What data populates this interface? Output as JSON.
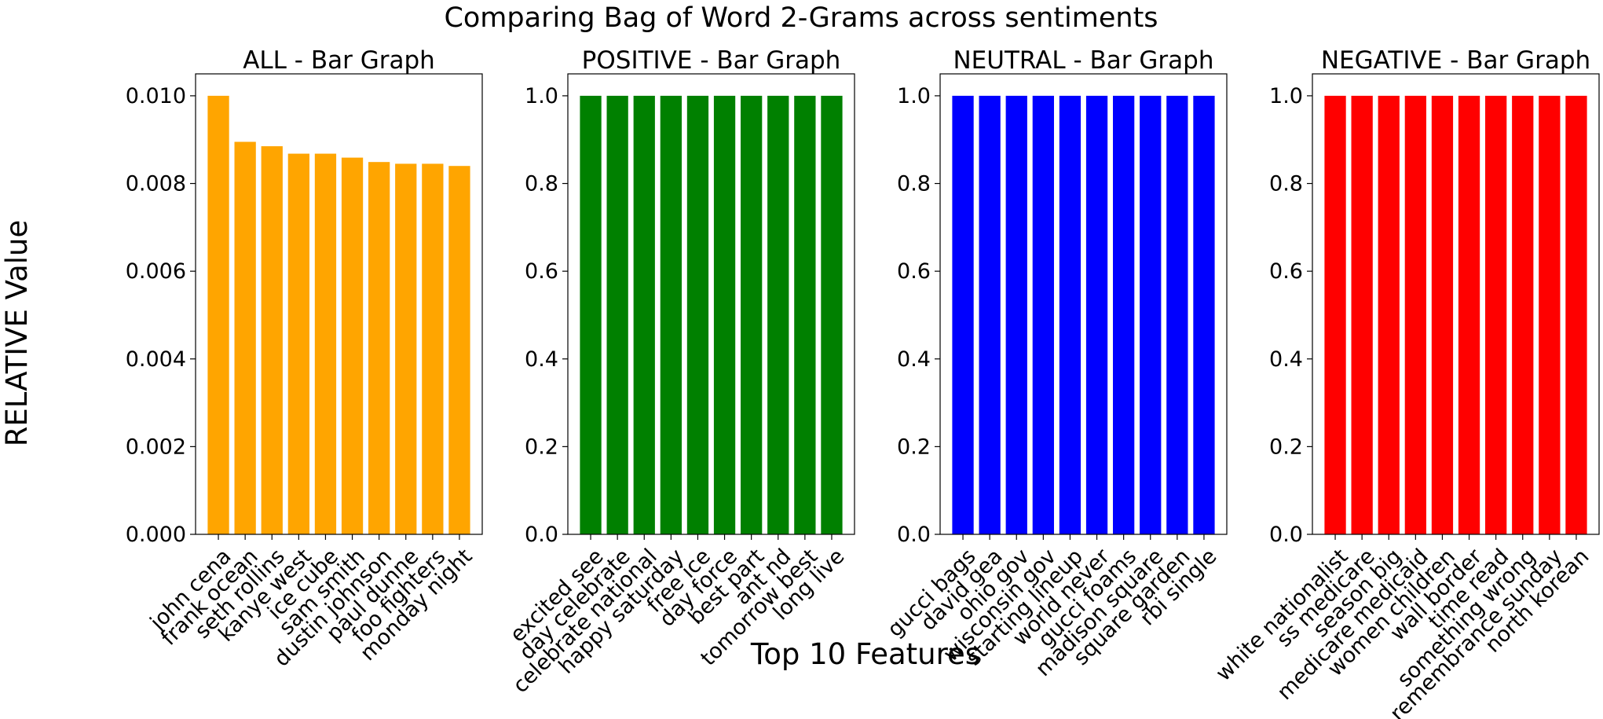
{
  "title": "Comparing Bag of Word 2-Grams across sentiments",
  "ylabel": "RELATIVE Value",
  "xlabel": "Top 10 Features",
  "chart_data": [
    {
      "type": "bar",
      "title": "ALL - Bar Graph",
      "color": "#FFA500",
      "categories": [
        "john cena",
        "frank ocean",
        "seth rollins",
        "kanye west",
        "ice cube",
        "sam smith",
        "dustin johnson",
        "paul dunne",
        "foo fighters",
        "monday night"
      ],
      "values": [
        0.01,
        0.00895,
        0.00885,
        0.00868,
        0.00868,
        0.00859,
        0.00849,
        0.00845,
        0.00845,
        0.0084
      ],
      "ylim": [
        0,
        0.0105
      ],
      "yticks": [
        "0.000",
        "0.002",
        "0.004",
        "0.006",
        "0.008",
        "0.010"
      ],
      "ytick_values": [
        0,
        0.002,
        0.004,
        0.006,
        0.008,
        0.01
      ]
    },
    {
      "type": "bar",
      "title": "POSITIVE - Bar Graph",
      "color": "#008000",
      "categories": [
        "excited see",
        "day celebrate",
        "celebrate national",
        "happy saturday",
        "free ice",
        "day force",
        "best part",
        "ant nd",
        "tomorrow best",
        "long live"
      ],
      "values": [
        1,
        1,
        1,
        1,
        1,
        1,
        1,
        1,
        1,
        1
      ],
      "ylim": [
        0,
        1.05
      ],
      "yticks": [
        "0.0",
        "0.2",
        "0.4",
        "0.6",
        "0.8",
        "1.0"
      ],
      "ytick_values": [
        0,
        0.2,
        0.4,
        0.6,
        0.8,
        1.0
      ]
    },
    {
      "type": "bar",
      "title": "NEUTRAL - Bar Graph",
      "color": "#0000FF",
      "categories": [
        "gucci bags",
        "david gea",
        "ohio gov",
        "wisconsin gov",
        "starting lineup",
        "world never",
        "gucci foams",
        "madison square",
        "square garden",
        "rbi single"
      ],
      "values": [
        1,
        1,
        1,
        1,
        1,
        1,
        1,
        1,
        1,
        1
      ],
      "ylim": [
        0,
        1.05
      ],
      "yticks": [
        "0.0",
        "0.2",
        "0.4",
        "0.6",
        "0.8",
        "1.0"
      ],
      "ytick_values": [
        0,
        0.2,
        0.4,
        0.6,
        0.8,
        1.0
      ]
    },
    {
      "type": "bar",
      "title": "NEGATIVE - Bar Graph",
      "color": "#FF0000",
      "categories": [
        "white nationalist",
        "ss medicare",
        "season big",
        "medicare medicaid",
        "women children",
        "wall border",
        "time read",
        "something wrong",
        "remembrance sunday",
        "north korean"
      ],
      "values": [
        1,
        1,
        1,
        1,
        1,
        1,
        1,
        1,
        1,
        1
      ],
      "ylim": [
        0,
        1.05
      ],
      "yticks": [
        "0.0",
        "0.2",
        "0.4",
        "0.6",
        "0.8",
        "1.0"
      ],
      "ytick_values": [
        0,
        0.2,
        0.4,
        0.6,
        0.8,
        1.0
      ]
    }
  ]
}
